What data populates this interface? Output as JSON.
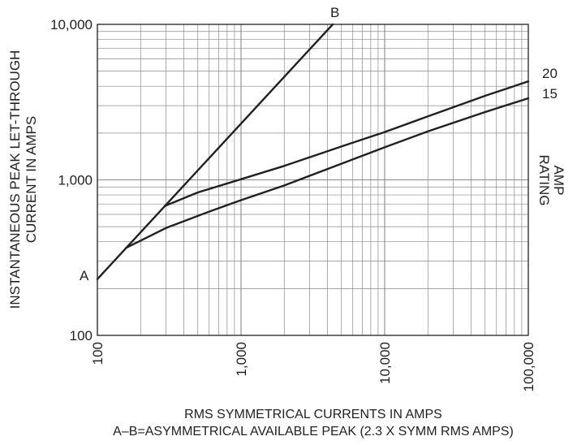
{
  "chart_data": {
    "type": "line",
    "xscale": "log",
    "yscale": "log",
    "xlim": [
      100,
      100000
    ],
    "ylim": [
      100,
      10000
    ],
    "grid": true,
    "x_ticks": [
      "100",
      "1,000",
      "10,000",
      "100,000"
    ],
    "y_ticks": [
      "100",
      "1,000",
      "10,000"
    ],
    "ylabel_line1": "INSTANTANEOUS PEAK LET-THROUGH",
    "ylabel_line2": "CURRENT IN AMPS",
    "xlabel_line1": "RMS SYMMETRICAL CURRENTS IN AMPS",
    "xlabel_line2": "A–B=ASYMMETRICAL AVAILABLE PEAK (2.3 X SYMM RMS AMPS)",
    "right_label_line1": "AMP",
    "right_label_line2": "RATING",
    "series": [
      {
        "name": "A–B",
        "start_label": "A",
        "end_label": "B",
        "x": [
          100,
          4350
        ],
        "y": [
          230,
          10000
        ]
      },
      {
        "name": "20",
        "x": [
          295,
          500,
          1000,
          2000,
          5000,
          10000,
          20000,
          50000,
          100000
        ],
        "y": [
          680,
          830,
          1010,
          1230,
          1640,
          2030,
          2560,
          3470,
          4300
        ]
      },
      {
        "name": "15",
        "x": [
          158,
          300,
          600,
          1000,
          2000,
          5000,
          10000,
          20000,
          50000,
          100000
        ],
        "y": [
          365,
          490,
          625,
          740,
          920,
          1270,
          1620,
          2050,
          2730,
          3350
        ]
      }
    ]
  }
}
